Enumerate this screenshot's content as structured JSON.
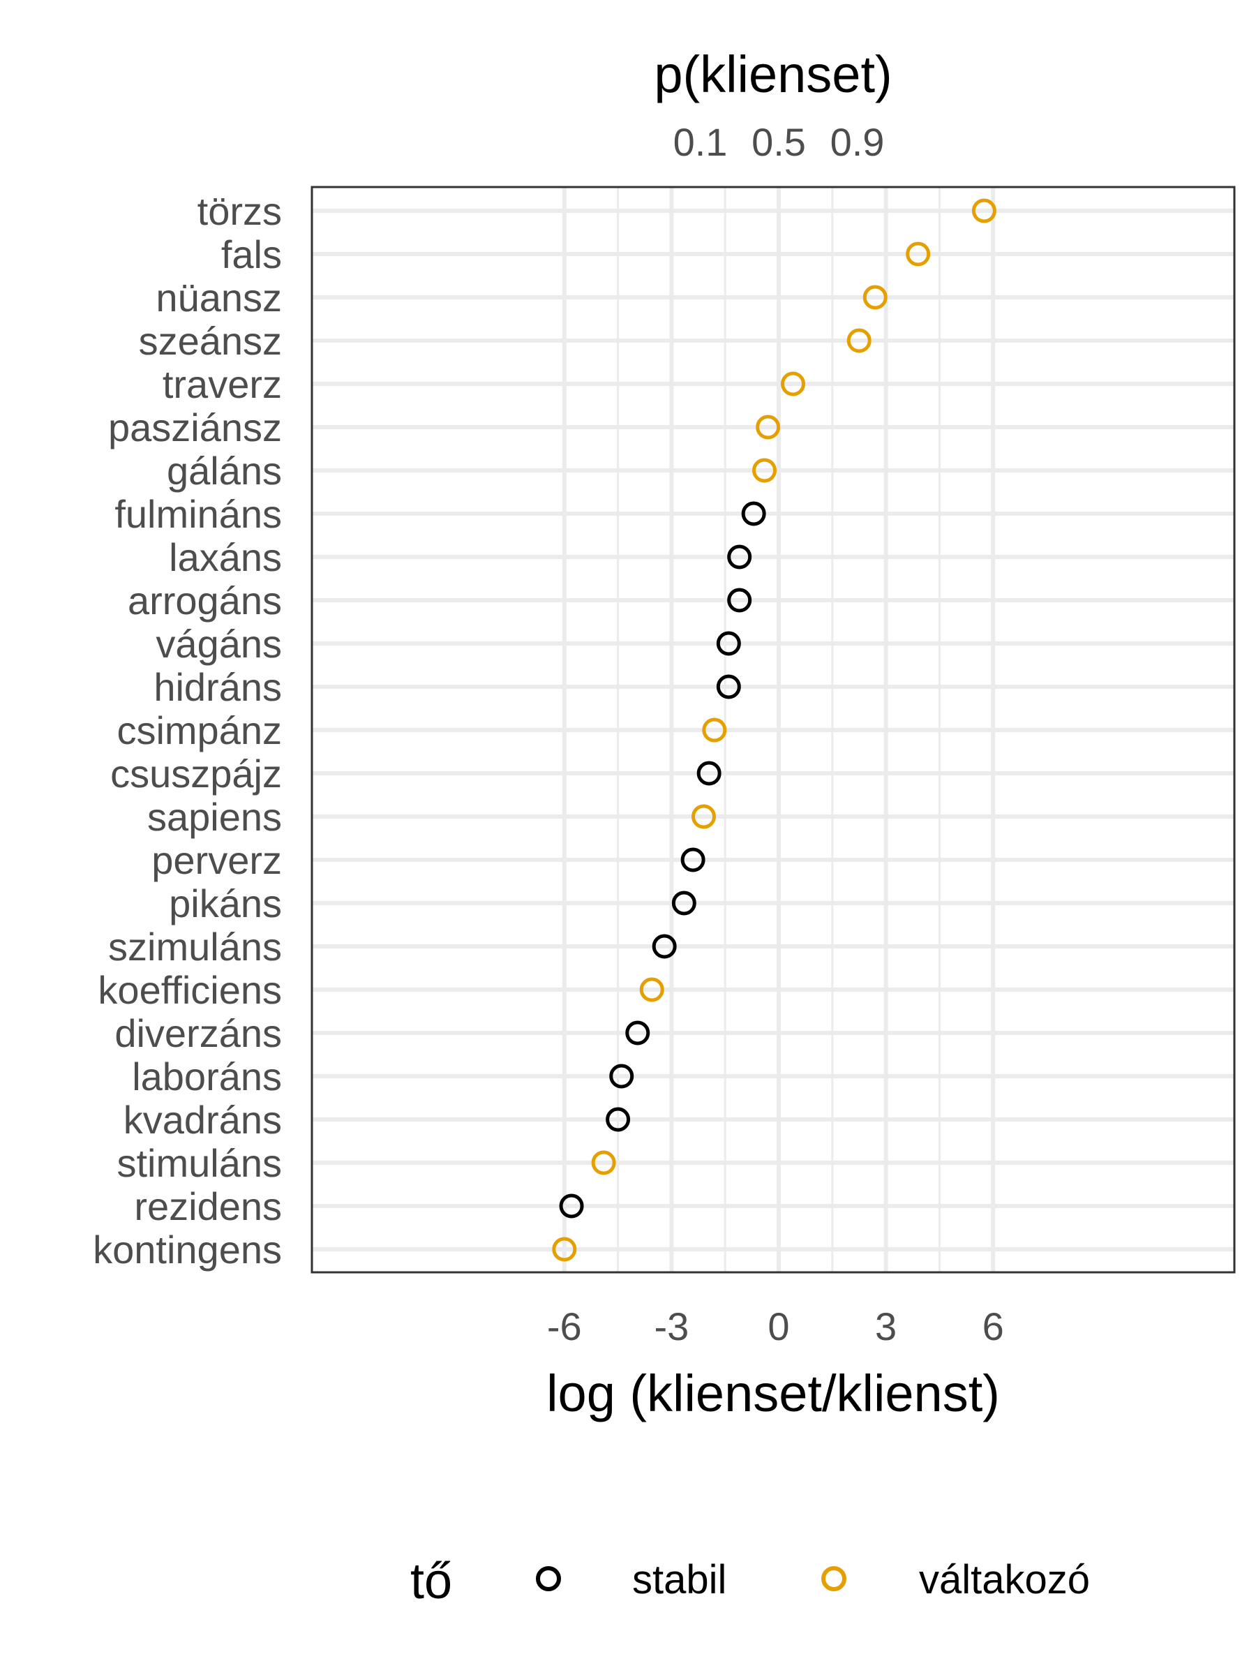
{
  "chart_data": {
    "type": "scatter",
    "xlabel": "log (klienset/klienst)",
    "x_secondary_label": "p(klienset)",
    "x_ticks": [
      -6,
      -3,
      0,
      3,
      6
    ],
    "x_tick_labels": [
      "-6",
      "-3",
      "0",
      "3",
      "6"
    ],
    "x_secondary_ticks": [
      0.1,
      0.5,
      0.9
    ],
    "x_secondary_tick_labels": [
      "0.1",
      "0.5",
      "0.9"
    ],
    "xlim": [
      -6.5,
      6.4
    ],
    "grid": true,
    "legend": {
      "title": "tő",
      "position": "bottom",
      "entries": [
        {
          "label": "stabil",
          "color": "#000000"
        },
        {
          "label": "váltakozó",
          "color": "#E69F00"
        }
      ]
    },
    "points": [
      {
        "word": "törzs",
        "x": 5.75,
        "group": "váltakozó"
      },
      {
        "word": "fals",
        "x": 3.9,
        "group": "váltakozó"
      },
      {
        "word": "nüansz",
        "x": 2.7,
        "group": "váltakozó"
      },
      {
        "word": "szeánsz",
        "x": 2.25,
        "group": "váltakozó"
      },
      {
        "word": "traverz",
        "x": 0.4,
        "group": "váltakozó"
      },
      {
        "word": "pasziánsz",
        "x": -0.3,
        "group": "váltakozó"
      },
      {
        "word": "gáláns",
        "x": -0.4,
        "group": "váltakozó"
      },
      {
        "word": "fulmináns",
        "x": -0.7,
        "group": "stabil"
      },
      {
        "word": "laxáns",
        "x": -1.1,
        "group": "stabil"
      },
      {
        "word": "arrogáns",
        "x": -1.1,
        "group": "stabil"
      },
      {
        "word": "vágáns",
        "x": -1.4,
        "group": "stabil"
      },
      {
        "word": "hidráns",
        "x": -1.4,
        "group": "stabil"
      },
      {
        "word": "csimpánz",
        "x": -1.8,
        "group": "váltakozó"
      },
      {
        "word": "csuszpájz",
        "x": -1.95,
        "group": "stabil"
      },
      {
        "word": "sapiens",
        "x": -2.1,
        "group": "váltakozó"
      },
      {
        "word": "perverz",
        "x": -2.4,
        "group": "stabil"
      },
      {
        "word": "pikáns",
        "x": -2.65,
        "group": "stabil"
      },
      {
        "word": "szimuláns",
        "x": -3.2,
        "group": "stabil"
      },
      {
        "word": "koefficiens",
        "x": -3.55,
        "group": "váltakozó"
      },
      {
        "word": "diverzáns",
        "x": -3.95,
        "group": "stabil"
      },
      {
        "word": "laboráns",
        "x": -4.4,
        "group": "stabil"
      },
      {
        "word": "kvadráns",
        "x": -4.5,
        "group": "stabil"
      },
      {
        "word": "stimuláns",
        "x": -4.9,
        "group": "váltakozó"
      },
      {
        "word": "rezidens",
        "x": -5.8,
        "group": "stabil"
      },
      {
        "word": "kontingens",
        "x": -6.0,
        "group": "váltakozó"
      }
    ]
  }
}
